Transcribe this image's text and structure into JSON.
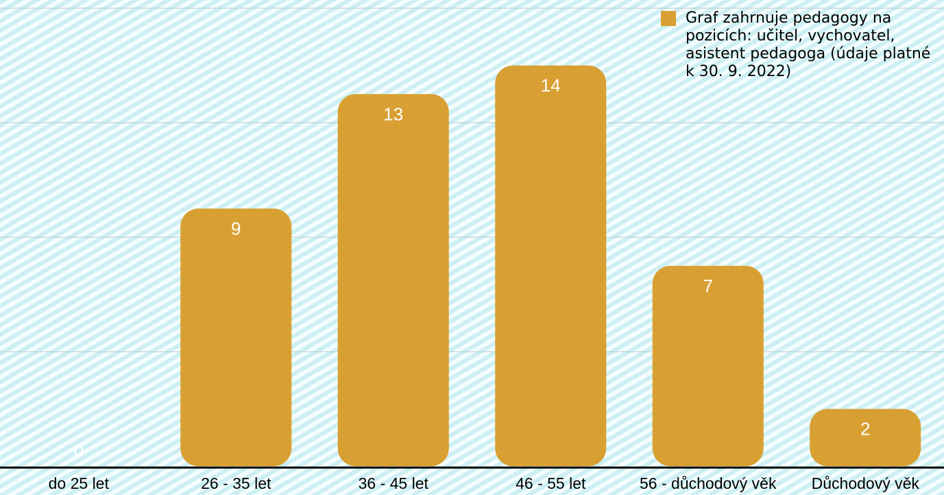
{
  "colors": {
    "bar": "#d8a032",
    "value_label": "#ffffff",
    "gridline": "#b9c9cc",
    "axis": "#000000",
    "background": "#d9f6f8"
  },
  "legend": {
    "text": "Graf zahrnuje pedagogy na pozicích: učitel, vychovatel, asistent pedagoga (údaje platné k 30. 9. 2022)"
  },
  "chart_data": {
    "type": "bar",
    "categories": [
      "do 25 let",
      "26 - 35 let",
      "36 - 45 let",
      "46 - 55 let",
      "56 - důchodový věk",
      "Důchodový věk"
    ],
    "series": [
      {
        "name": "Graf zahrnuje pedagogy na pozicích: učitel, vychovatel, asistent pedagoga (údaje platné k 30. 9. 2022)",
        "values": [
          0,
          9,
          13,
          14,
          7,
          2
        ]
      }
    ],
    "data_labels": [
      "0",
      "9",
      "13",
      "14",
      "7",
      "2"
    ],
    "ylim": [
      0,
      16
    ],
    "grid": true,
    "legend_position": "top-right",
    "title": "",
    "xlabel": "",
    "ylabel": ""
  }
}
